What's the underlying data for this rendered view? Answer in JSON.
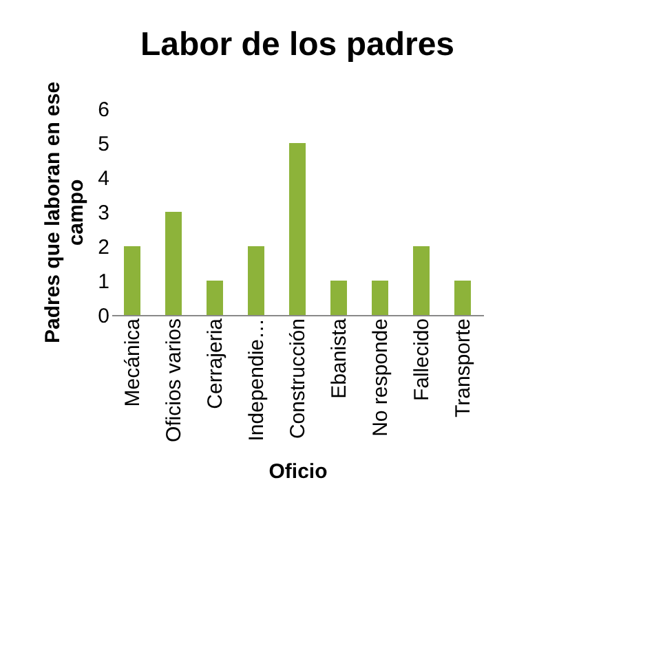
{
  "chart_data": {
    "type": "bar",
    "title": "Labor de los padres",
    "xlabel": "Oficio",
    "ylabel": "Padres que laboran en ese campo",
    "categories": [
      "Mecánica",
      "Oficios varios",
      "Cerrajeria",
      "Independie…",
      "Construcción",
      "Ebanista",
      "No responde",
      "Fallecido",
      "Transporte"
    ],
    "values": [
      2,
      3,
      1,
      2,
      5,
      1,
      1,
      2,
      1
    ],
    "color": "#8db33a",
    "ylim": [
      0,
      6
    ],
    "yticks": [
      0,
      1,
      2,
      3,
      4,
      5,
      6
    ],
    "grid": false
  }
}
